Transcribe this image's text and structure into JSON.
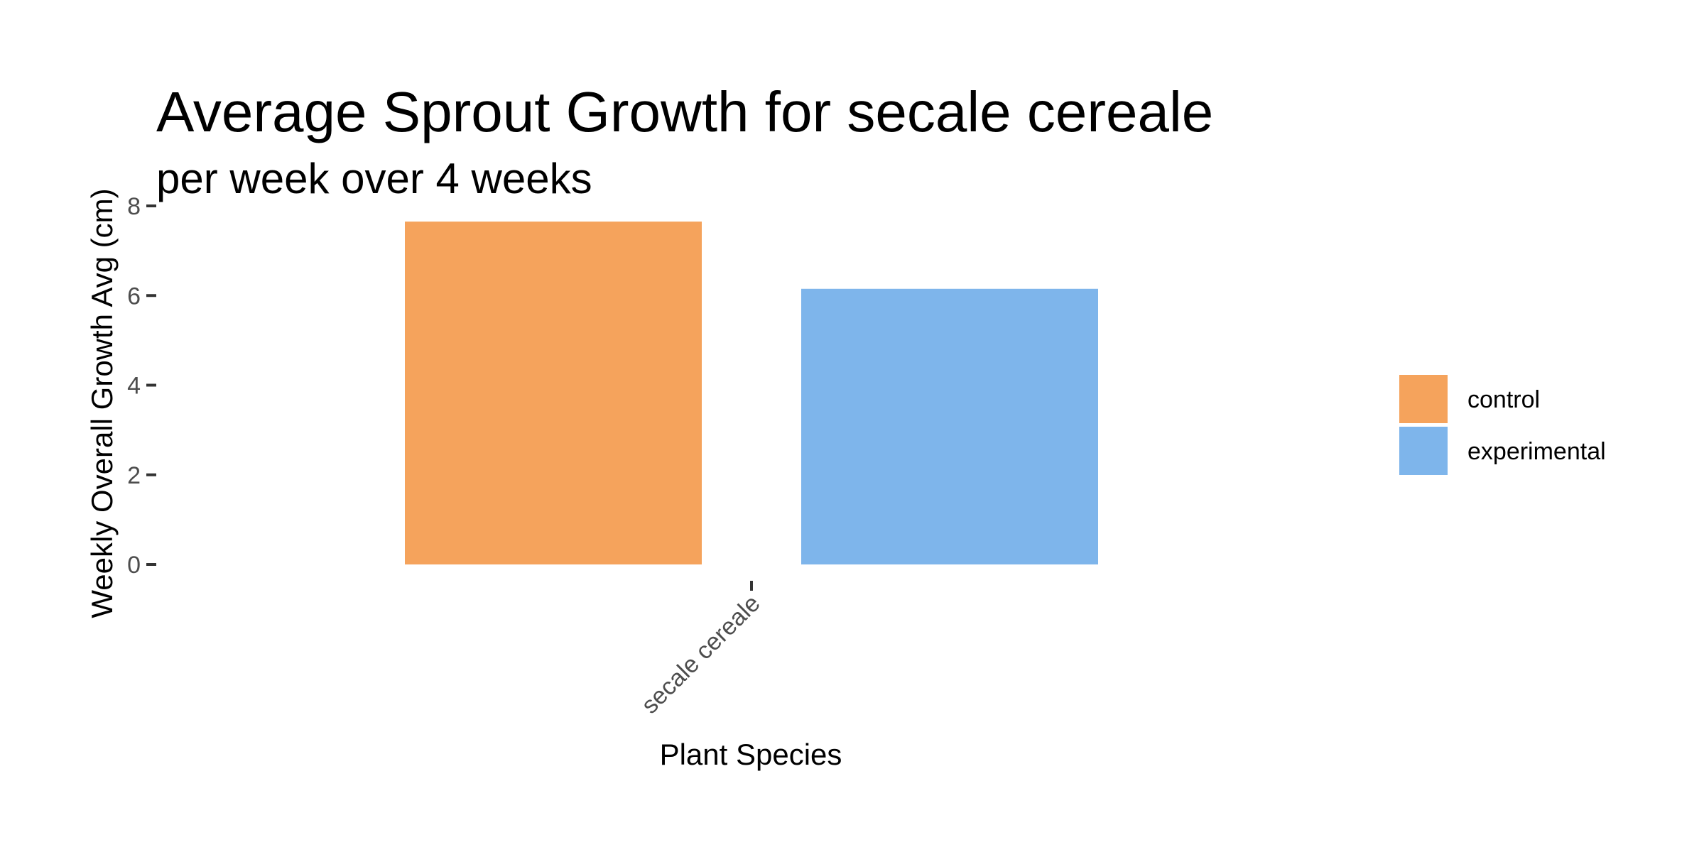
{
  "chart_data": {
    "type": "bar",
    "title": "Average Sprout Growth for secale cereale",
    "subtitle": "per week over 4 weeks",
    "xlabel": "Plant Species",
    "ylabel": "Weekly Overall Growth Avg (cm)",
    "categories": [
      "secale cereale"
    ],
    "series": [
      {
        "name": "control",
        "color": "#F5A35C",
        "values": [
          7.65
        ]
      },
      {
        "name": "experimental",
        "color": "#7EB5EB",
        "values": [
          6.15
        ]
      }
    ],
    "ylim": [
      0,
      8
    ],
    "yticks": [
      0,
      2,
      4,
      6,
      8
    ],
    "grid": false,
    "legend_position": "right"
  }
}
